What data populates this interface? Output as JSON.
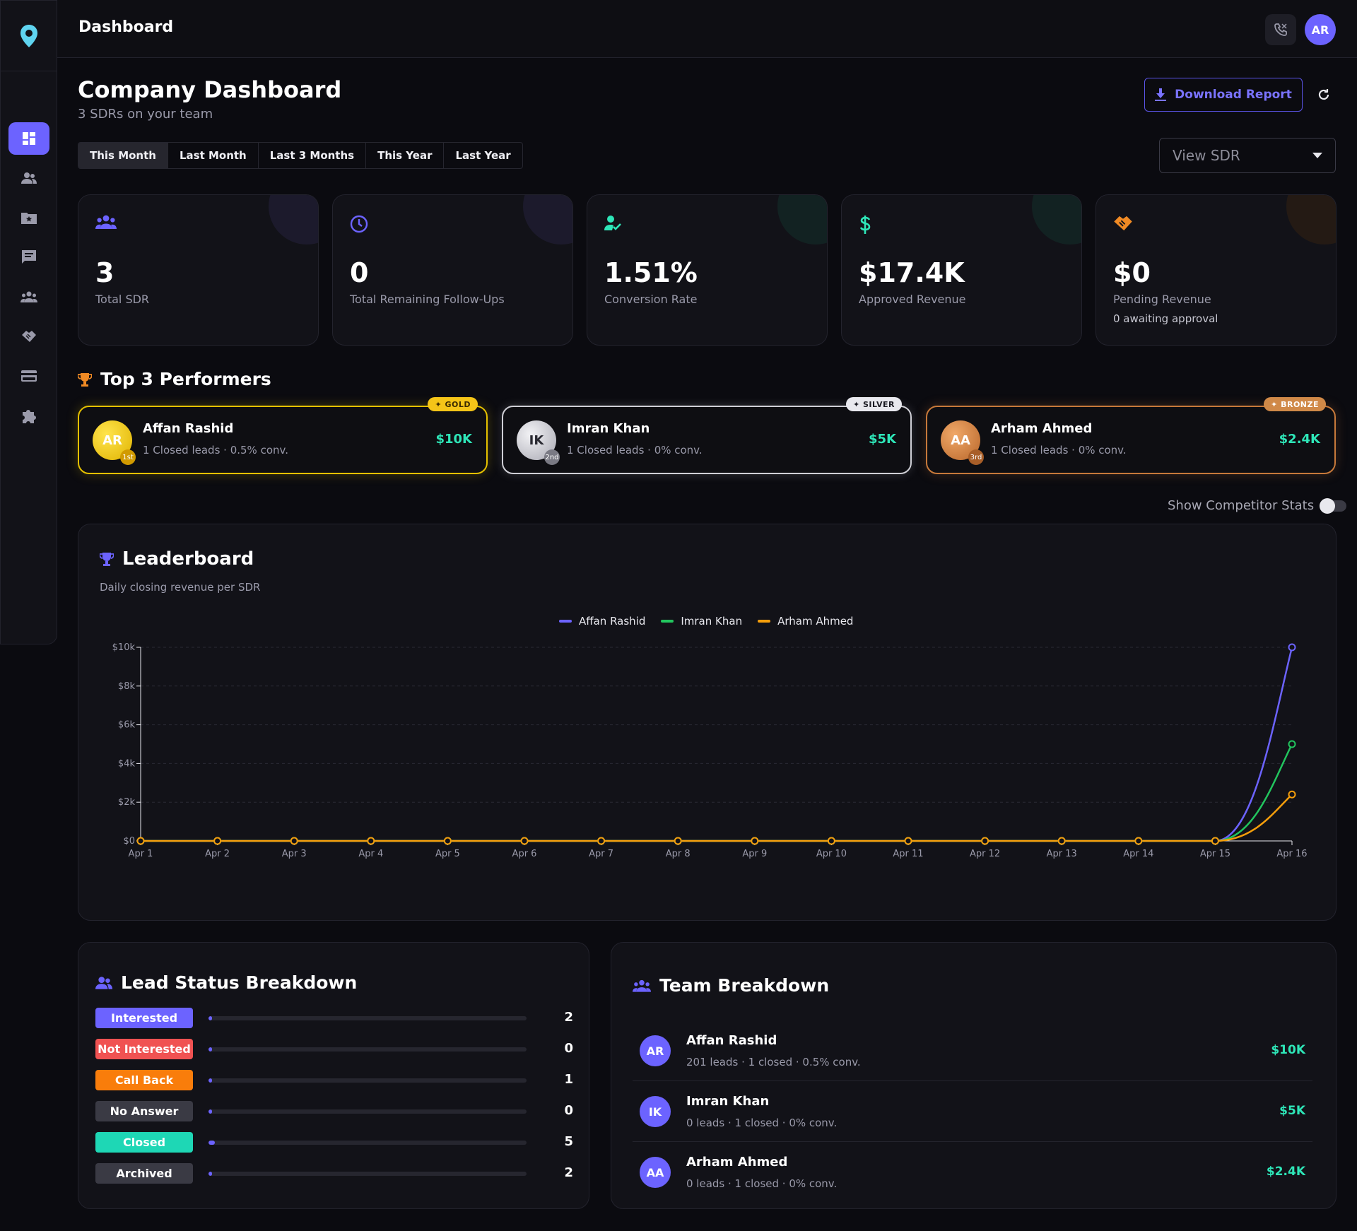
{
  "header": {
    "title": "Dashboard",
    "avatar_initials": "AR"
  },
  "sidebar": {
    "items": [
      {
        "name": "dashboard",
        "icon": "dashboard-icon",
        "active": true
      },
      {
        "name": "users",
        "icon": "users-icon",
        "active": false
      },
      {
        "name": "folder-star",
        "icon": "folder-star-icon",
        "active": false
      },
      {
        "name": "messages",
        "icon": "chat-icon",
        "active": false
      },
      {
        "name": "team",
        "icon": "team-icon",
        "active": false
      },
      {
        "name": "deals",
        "icon": "handshake-icon",
        "active": false
      },
      {
        "name": "billing",
        "icon": "credit-card-icon",
        "active": false
      },
      {
        "name": "integrations",
        "icon": "puzzle-icon",
        "active": false
      }
    ]
  },
  "page": {
    "title": "Company Dashboard",
    "subtitle": "3 SDRs on your team",
    "download_label": "Download Report",
    "periods": [
      "This Month",
      "Last Month",
      "Last 3 Months",
      "This Year",
      "Last Year"
    ],
    "active_period": "This Month",
    "view_sdr": "View SDR"
  },
  "stats": [
    {
      "value": "3",
      "label": "Total SDR",
      "sub": "",
      "icon": "team-icon",
      "color": "#6c63ff"
    },
    {
      "value": "0",
      "label": "Total Remaining Follow-Ups",
      "sub": "",
      "icon": "clock-icon",
      "color": "#6c63ff"
    },
    {
      "value": "1.51%",
      "label": "Conversion Rate",
      "sub": "",
      "icon": "user-check-icon",
      "color": "#2ee6b8"
    },
    {
      "value": "$17.4K",
      "label": "Approved Revenue",
      "sub": "",
      "icon": "dollar-icon",
      "color": "#2ee6b8"
    },
    {
      "value": "$0",
      "label": "Pending Revenue",
      "sub": "0 awaiting approval",
      "icon": "handshake-icon",
      "color": "#f08a24"
    }
  ],
  "performers": {
    "title": "Top 3 Performers",
    "items": [
      {
        "initials": "AR",
        "rank": "1st",
        "badge": "✦ GOLD",
        "name": "Affan Rashid",
        "stats": "1 Closed leads · 0.5% conv.",
        "amount": "$10K"
      },
      {
        "initials": "IK",
        "rank": "2nd",
        "badge": "✦ SILVER",
        "name": "Imran Khan",
        "stats": "1 Closed leads · 0% conv.",
        "amount": "$5K"
      },
      {
        "initials": "AA",
        "rank": "3rd",
        "badge": "✦ BRONZE",
        "name": "Arham Ahmed",
        "stats": "1 Closed leads · 0% conv.",
        "amount": "$2.4K"
      }
    ]
  },
  "competitor_toggle": {
    "label": "Show Competitor Stats",
    "on": false
  },
  "leaderboard": {
    "title": "Leaderboard",
    "subtitle": "Daily closing revenue per SDR"
  },
  "chart_data": {
    "type": "line",
    "title": "Leaderboard",
    "x": [
      "Apr 1",
      "Apr 2",
      "Apr 3",
      "Apr 4",
      "Apr 5",
      "Apr 6",
      "Apr 7",
      "Apr 8",
      "Apr 9",
      "Apr 10",
      "Apr 11",
      "Apr 12",
      "Apr 13",
      "Apr 14",
      "Apr 15",
      "Apr 16"
    ],
    "y_ticks": [
      "$0",
      "$2k",
      "$4k",
      "$6k",
      "$8k",
      "$10k"
    ],
    "ylim": [
      0,
      10000
    ],
    "grid": true,
    "legend_position": "top-center",
    "series": [
      {
        "name": "Affan Rashid",
        "color": "#6c63ff",
        "values": [
          0,
          0,
          0,
          0,
          0,
          0,
          0,
          0,
          0,
          0,
          0,
          0,
          0,
          0,
          0,
          10000
        ]
      },
      {
        "name": "Imran Khan",
        "color": "#22c55e",
        "values": [
          0,
          0,
          0,
          0,
          0,
          0,
          0,
          0,
          0,
          0,
          0,
          0,
          0,
          0,
          0,
          5000
        ]
      },
      {
        "name": "Arham Ahmed",
        "color": "#f59e0b",
        "values": [
          0,
          0,
          0,
          0,
          0,
          0,
          0,
          0,
          0,
          0,
          0,
          0,
          0,
          0,
          0,
          2400
        ]
      }
    ]
  },
  "lead_status": {
    "title": "Lead Status Breakdown",
    "max": 5,
    "items": [
      {
        "label": "Interested",
        "count": 2,
        "color": "#6c63ff",
        "fill": 0.0
      },
      {
        "label": "Not Interested",
        "count": 0,
        "color": "#f05252",
        "fill": 0.0
      },
      {
        "label": "Call Back",
        "count": 1,
        "color": "#f97d0b",
        "fill": 0.0
      },
      {
        "label": "No Answer",
        "count": 0,
        "color": "#3a3a44",
        "fill": 0.0
      },
      {
        "label": "Closed",
        "count": 5,
        "color": "#1ed7b5",
        "fill": 0.02
      },
      {
        "label": "Archived",
        "count": 2,
        "color": "#3a3a44",
        "fill": 0.0
      }
    ]
  },
  "team": {
    "title": "Team Breakdown",
    "items": [
      {
        "initials": "AR",
        "name": "Affan Rashid",
        "stats": "201 leads · 1 closed · 0.5% conv.",
        "amount": "$10K"
      },
      {
        "initials": "IK",
        "name": "Imran Khan",
        "stats": "0 leads · 1 closed · 0% conv.",
        "amount": "$5K"
      },
      {
        "initials": "AA",
        "name": "Arham Ahmed",
        "stats": "0 leads · 1 closed · 0% conv.",
        "amount": "$2.4K"
      }
    ]
  }
}
